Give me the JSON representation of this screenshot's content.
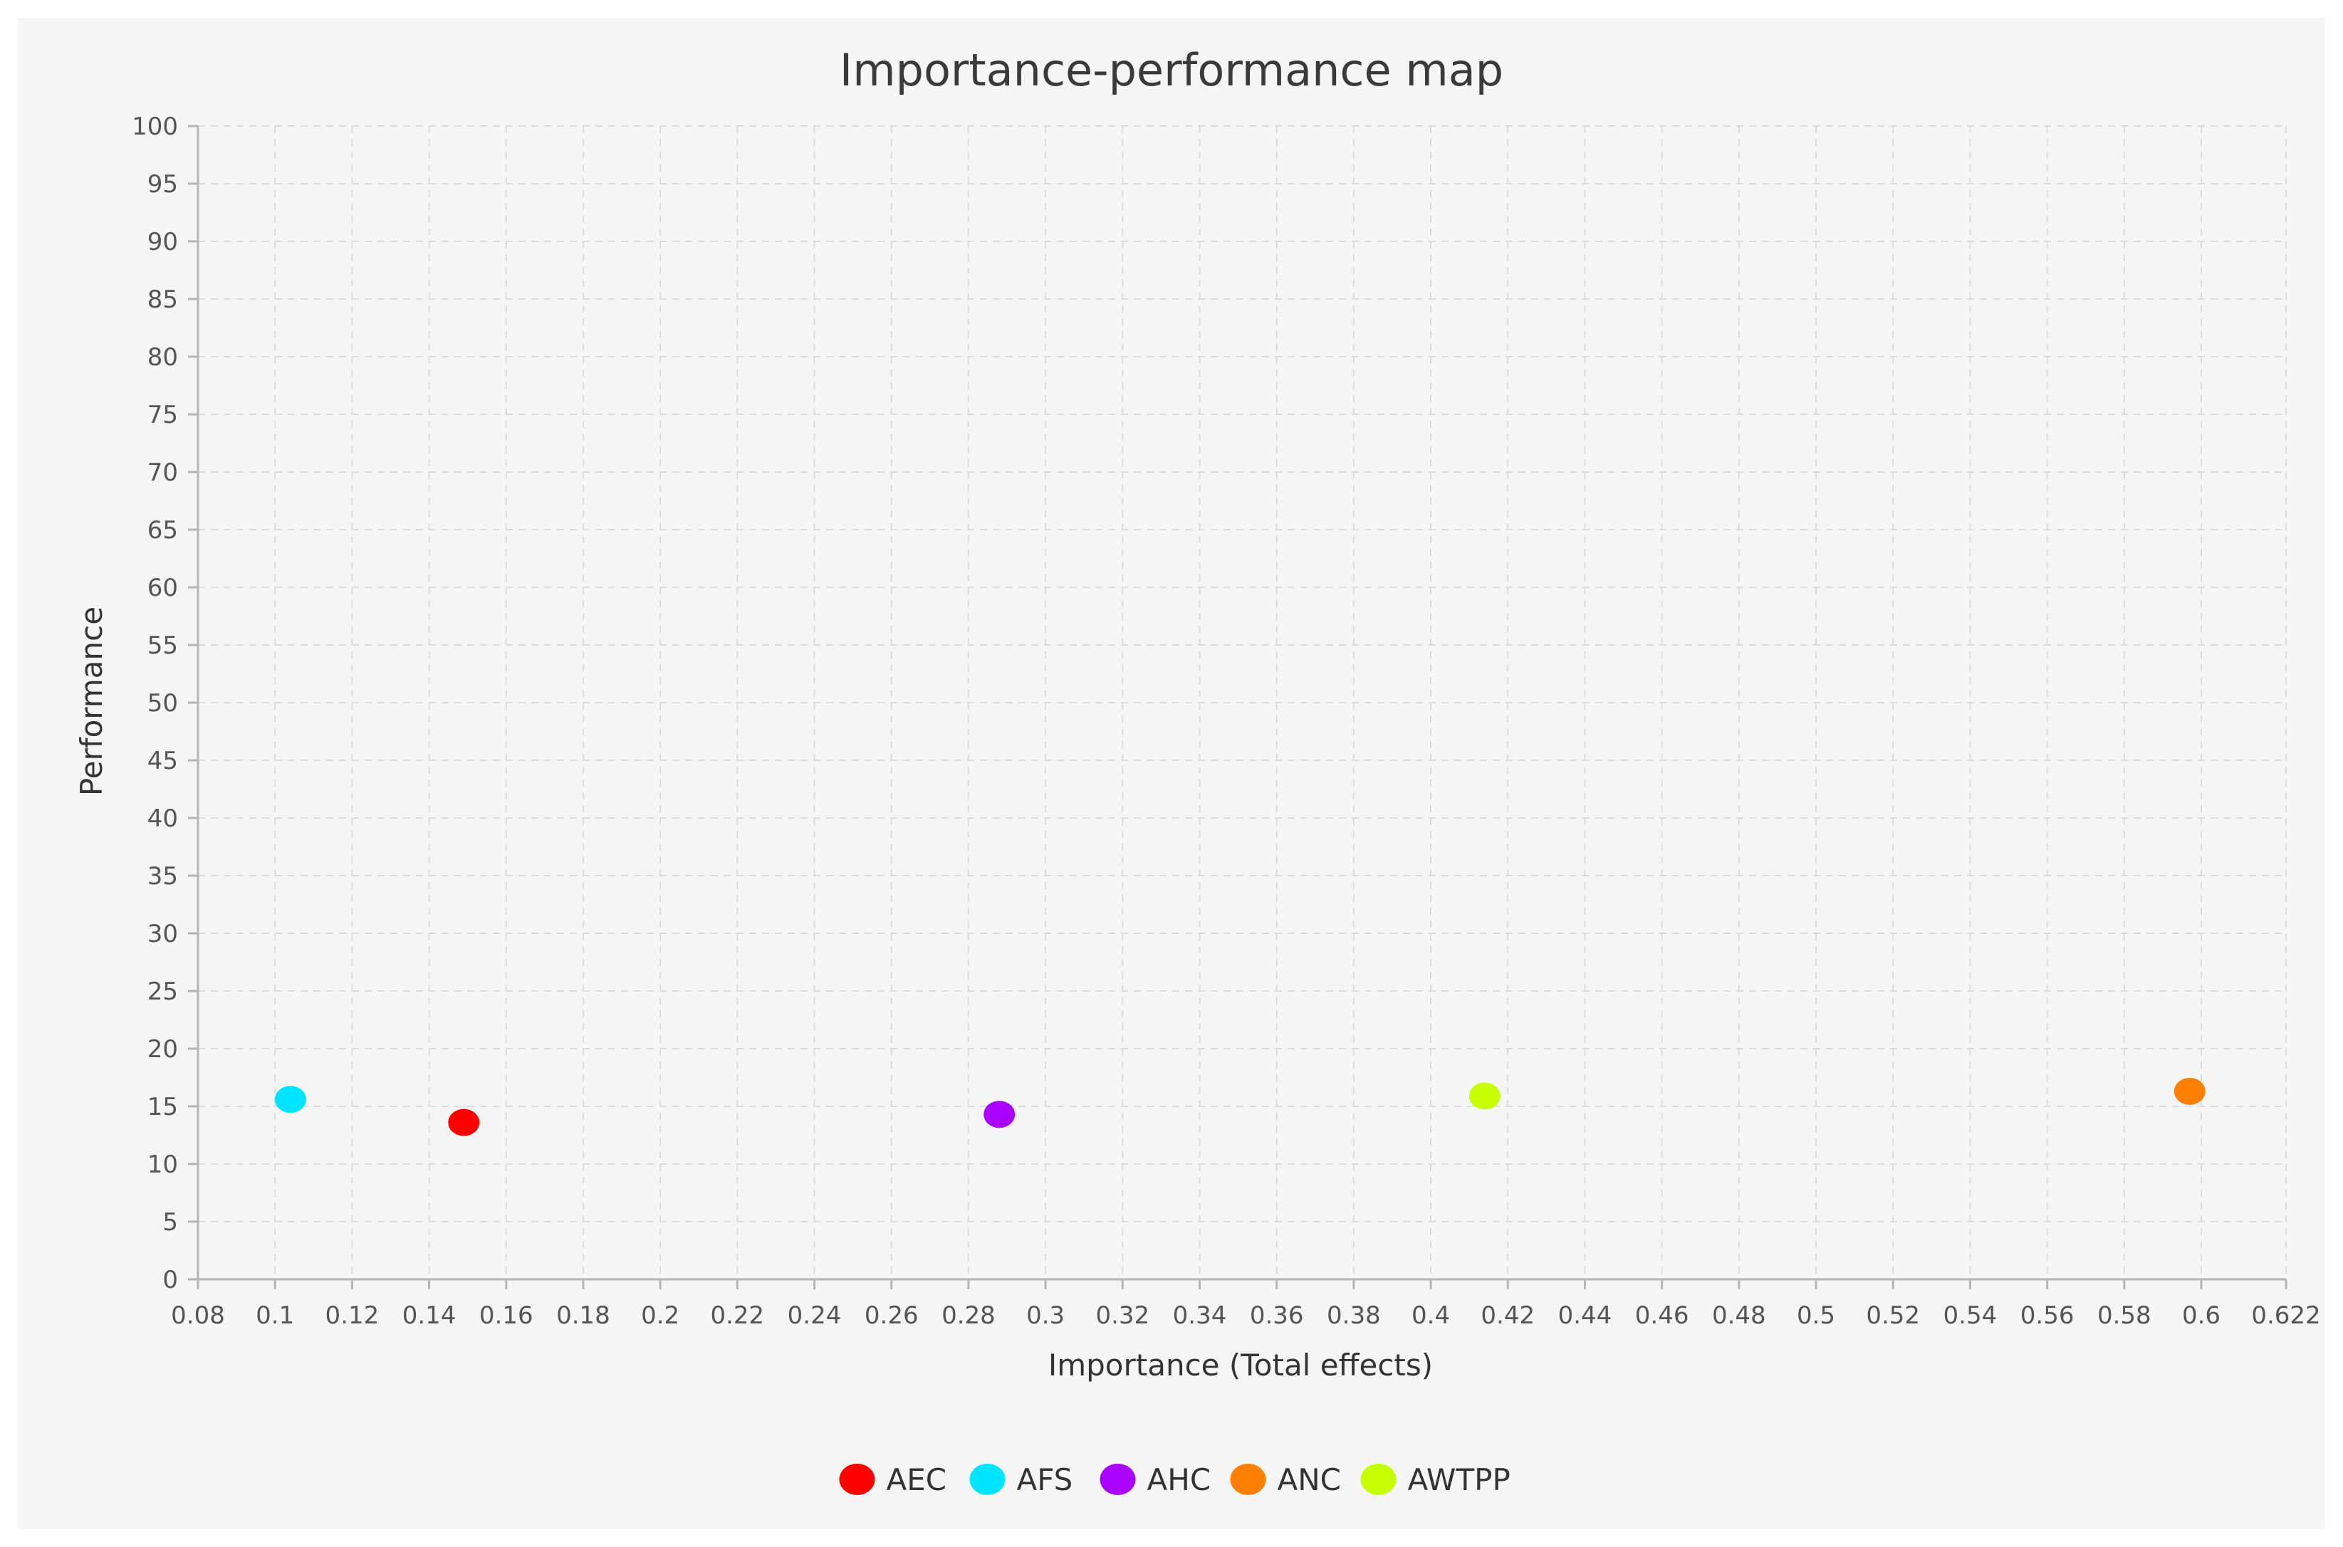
{
  "chart_data": {
    "type": "scatter",
    "title": "Importance-performance map",
    "xlabel": "Importance (Total effects)",
    "ylabel": "Performance",
    "xlim": [
      0.08,
      0.622
    ],
    "ylim": [
      0,
      100
    ],
    "x_ticks": [
      "0.08",
      "0.1",
      "0.12",
      "0.14",
      "0.16",
      "0.18",
      "0.2",
      "0.22",
      "0.24",
      "0.26",
      "0.28",
      "0.3",
      "0.32",
      "0.34",
      "0.36",
      "0.38",
      "0.4",
      "0.42",
      "0.44",
      "0.46",
      "0.48",
      "0.5",
      "0.52",
      "0.54",
      "0.56",
      "0.58",
      "0.6",
      "0.622"
    ],
    "y_ticks": [
      "0",
      "5",
      "10",
      "15",
      "20",
      "25",
      "30",
      "35",
      "40",
      "45",
      "50",
      "55",
      "60",
      "65",
      "70",
      "75",
      "80",
      "85",
      "90",
      "95",
      "100"
    ],
    "grid": true,
    "legend_position": "bottom",
    "series": [
      {
        "name": "AEC",
        "color": "#ff0000",
        "x": 0.149,
        "y": 13.6
      },
      {
        "name": "AFS",
        "color": "#00e5ff",
        "x": 0.104,
        "y": 15.6
      },
      {
        "name": "AHC",
        "color": "#aa00ff",
        "x": 0.288,
        "y": 14.3
      },
      {
        "name": "ANC",
        "color": "#ff7f00",
        "x": 0.597,
        "y": 16.3
      },
      {
        "name": "AWTPP",
        "color": "#c6ff00",
        "x": 0.414,
        "y": 15.9
      }
    ]
  }
}
